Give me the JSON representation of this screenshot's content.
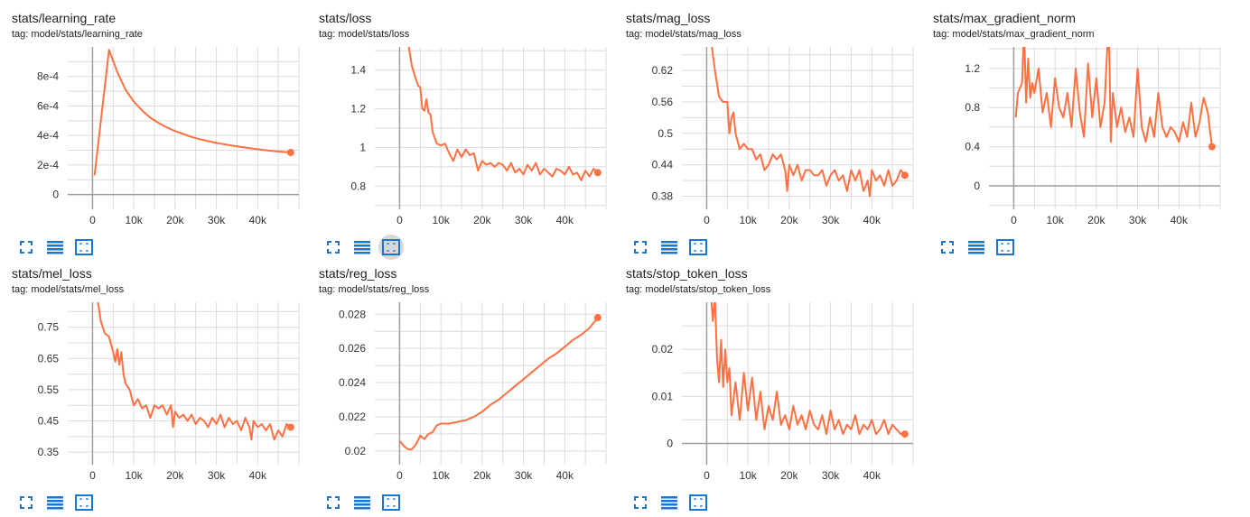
{
  "colors": {
    "line": "#ff7043",
    "grid": "#dcdcdc",
    "axis": "#9e9e9e",
    "icon": "#1976d2"
  },
  "icons": [
    "fit-to-screen-icon",
    "data-table-icon",
    "zoom-box-icon"
  ],
  "chart_data": [
    {
      "type": "line",
      "title": "stats/learning_rate",
      "tag": "tag: model/stats/learning_rate",
      "xlim": [
        -6000,
        50000
      ],
      "ylim": [
        -0.0001,
        0.001
      ],
      "xticks": [
        0,
        10000,
        20000,
        30000,
        40000
      ],
      "xtick_labels": [
        "0",
        "10k",
        "20k",
        "30k",
        "40k"
      ],
      "yticks": [
        0,
        0.0002,
        0.0004,
        0.0006,
        0.0008
      ],
      "ytick_labels": [
        "0",
        "2e-4",
        "4e-4",
        "6e-4",
        "8e-4"
      ],
      "x": [
        500,
        4000,
        6000,
        8000,
        10000,
        12000,
        14000,
        16000,
        18000,
        20000,
        22000,
        24000,
        26000,
        28000,
        30000,
        32000,
        34000,
        36000,
        38000,
        40000,
        42000,
        44000,
        46000,
        48000
      ],
      "y": [
        0.00013,
        0.00098,
        0.00083,
        0.00071,
        0.00063,
        0.00057,
        0.00052,
        0.000485,
        0.000455,
        0.00043,
        0.00041,
        0.00039,
        0.000375,
        0.000362,
        0.00035,
        0.00034,
        0.000331,
        0.000322,
        0.000314,
        0.000307,
        0.0003,
        0.000294,
        0.000289,
        0.000285
      ]
    },
    {
      "type": "line",
      "title": "stats/loss",
      "tag": "tag: model/stats/loss",
      "xlim": [
        -6000,
        50000
      ],
      "ylim": [
        0.68,
        1.52
      ],
      "xticks": [
        0,
        10000,
        20000,
        30000,
        40000
      ],
      "xtick_labels": [
        "0",
        "10k",
        "20k",
        "30k",
        "40k"
      ],
      "yticks": [
        0.8,
        1.0,
        1.2,
        1.4
      ],
      "ytick_labels": [
        "0.8",
        "1",
        "1.2",
        "1.4"
      ],
      "x": [
        2000,
        3000,
        4000,
        4500,
        5000,
        5500,
        6000,
        6500,
        7000,
        7500,
        8000,
        9000,
        10000,
        11000,
        12000,
        13000,
        14000,
        15000,
        16000,
        17000,
        18000,
        19000,
        20000,
        21000,
        22000,
        23000,
        24000,
        25000,
        26000,
        27000,
        28000,
        29000,
        30000,
        31000,
        32000,
        33000,
        34000,
        35000,
        36000,
        37000,
        38000,
        39000,
        40000,
        41000,
        42000,
        43000,
        44000,
        45000,
        46000,
        47000,
        48000
      ],
      "y": [
        1.55,
        1.42,
        1.35,
        1.32,
        1.31,
        1.2,
        1.19,
        1.25,
        1.18,
        1.17,
        1.08,
        1.02,
        1.01,
        1.02,
        0.97,
        0.93,
        0.99,
        0.95,
        0.99,
        0.96,
        0.97,
        0.88,
        0.93,
        0.91,
        0.92,
        0.9,
        0.92,
        0.91,
        0.88,
        0.92,
        0.87,
        0.89,
        0.86,
        0.91,
        0.88,
        0.92,
        0.86,
        0.89,
        0.87,
        0.85,
        0.89,
        0.88,
        0.86,
        0.9,
        0.86,
        0.87,
        0.83,
        0.88,
        0.85,
        0.89,
        0.87
      ]
    },
    {
      "type": "line",
      "title": "stats/mag_loss",
      "tag": "tag: model/stats/mag_loss",
      "xlim": [
        -6000,
        50000
      ],
      "ylim": [
        0.355,
        0.665
      ],
      "xticks": [
        0,
        10000,
        20000,
        30000,
        40000
      ],
      "xtick_labels": [
        "0",
        "10k",
        "20k",
        "30k",
        "40k"
      ],
      "yticks": [
        0.38,
        0.44,
        0.5,
        0.56,
        0.62
      ],
      "ytick_labels": [
        "0.38",
        "0.44",
        "0.5",
        "0.56",
        "0.62"
      ],
      "x": [
        1000,
        2000,
        3000,
        4000,
        5000,
        5500,
        6000,
        6500,
        7000,
        8000,
        9000,
        10000,
        11000,
        12000,
        13000,
        14000,
        15000,
        16000,
        17000,
        18000,
        19000,
        19500,
        20000,
        21000,
        22000,
        23000,
        24000,
        25000,
        26000,
        27000,
        28000,
        29000,
        30000,
        31000,
        32000,
        33000,
        34000,
        35000,
        36000,
        37000,
        38000,
        39000,
        39500,
        40000,
        41000,
        42000,
        43000,
        44000,
        45000,
        46000,
        47000,
        48000
      ],
      "y": [
        0.68,
        0.62,
        0.57,
        0.56,
        0.56,
        0.5,
        0.53,
        0.54,
        0.5,
        0.47,
        0.48,
        0.47,
        0.47,
        0.45,
        0.46,
        0.43,
        0.44,
        0.46,
        0.45,
        0.46,
        0.43,
        0.39,
        0.44,
        0.42,
        0.44,
        0.41,
        0.43,
        0.43,
        0.42,
        0.42,
        0.43,
        0.4,
        0.42,
        0.43,
        0.41,
        0.42,
        0.39,
        0.43,
        0.41,
        0.43,
        0.39,
        0.41,
        0.38,
        0.43,
        0.41,
        0.42,
        0.4,
        0.43,
        0.4,
        0.41,
        0.43,
        0.42
      ]
    },
    {
      "type": "line",
      "title": "stats/max_gradient_norm",
      "tag": "tag: model/stats/max_gradient_norm",
      "xlim": [
        -6000,
        50000
      ],
      "ylim": [
        -0.24,
        1.42
      ],
      "xticks": [
        0,
        10000,
        20000,
        30000,
        40000
      ],
      "xtick_labels": [
        "0",
        "10k",
        "20k",
        "30k",
        "40k"
      ],
      "yticks": [
        0,
        0.4,
        0.8,
        1.2
      ],
      "ytick_labels": [
        "0",
        "0.4",
        "0.8",
        "1.2"
      ],
      "x": [
        500,
        1000,
        2000,
        2500,
        3000,
        3500,
        4000,
        4500,
        5000,
        6000,
        7000,
        8000,
        9000,
        10000,
        11000,
        12000,
        13000,
        14000,
        15000,
        16000,
        17000,
        18000,
        19000,
        20000,
        21000,
        22000,
        23000,
        23500,
        24000,
        25000,
        26000,
        27000,
        28000,
        29000,
        30000,
        31000,
        32000,
        33000,
        34000,
        35000,
        36000,
        37000,
        38000,
        39000,
        40000,
        41000,
        42000,
        43000,
        44000,
        45000,
        46000,
        47000,
        48000
      ],
      "y": [
        0.7,
        0.95,
        1.05,
        1.6,
        0.85,
        1.3,
        0.9,
        1.05,
        0.95,
        1.2,
        0.75,
        0.95,
        0.6,
        1.1,
        0.8,
        0.7,
        0.95,
        0.6,
        1.2,
        0.75,
        0.5,
        1.25,
        0.7,
        1.1,
        0.6,
        0.85,
        1.7,
        0.45,
        0.95,
        0.6,
        0.8,
        0.55,
        0.7,
        0.5,
        1.2,
        0.6,
        0.45,
        0.7,
        0.5,
        0.95,
        0.6,
        0.5,
        0.6,
        0.55,
        0.45,
        0.65,
        0.5,
        0.85,
        0.5,
        0.65,
        0.9,
        0.75,
        0.4
      ]
    },
    {
      "type": "line",
      "title": "stats/mel_loss",
      "tag": "tag: model/stats/mel_loss",
      "xlim": [
        -6000,
        50000
      ],
      "ylim": [
        0.31,
        0.83
      ],
      "xticks": [
        0,
        10000,
        20000,
        30000,
        40000
      ],
      "xtick_labels": [
        "0",
        "10k",
        "20k",
        "30k",
        "40k"
      ],
      "yticks": [
        0.35,
        0.45,
        0.55,
        0.65,
        0.75
      ],
      "ytick_labels": [
        "0.35",
        "0.45",
        "0.55",
        "0.65",
        "0.75"
      ],
      "x": [
        1000,
        2000,
        3000,
        4000,
        5000,
        5500,
        6000,
        6500,
        7000,
        7500,
        8000,
        9000,
        10000,
        11000,
        12000,
        13000,
        14000,
        15000,
        16000,
        17000,
        18000,
        19000,
        19500,
        20000,
        21000,
        22000,
        23000,
        24000,
        25000,
        26000,
        27000,
        28000,
        29000,
        30000,
        31000,
        32000,
        33000,
        34000,
        35000,
        36000,
        37000,
        38000,
        38500,
        39000,
        40000,
        41000,
        42000,
        43000,
        44000,
        45000,
        46000,
        47000,
        48000
      ],
      "y": [
        0.86,
        0.77,
        0.73,
        0.72,
        0.67,
        0.64,
        0.68,
        0.63,
        0.67,
        0.6,
        0.57,
        0.55,
        0.5,
        0.52,
        0.49,
        0.5,
        0.46,
        0.5,
        0.49,
        0.5,
        0.47,
        0.5,
        0.43,
        0.48,
        0.46,
        0.47,
        0.45,
        0.47,
        0.44,
        0.46,
        0.45,
        0.43,
        0.46,
        0.44,
        0.47,
        0.43,
        0.46,
        0.44,
        0.45,
        0.42,
        0.46,
        0.43,
        0.39,
        0.45,
        0.43,
        0.44,
        0.42,
        0.44,
        0.39,
        0.42,
        0.4,
        0.44,
        0.43
      ]
    },
    {
      "type": "line",
      "title": "stats/reg_loss",
      "tag": "tag: model/stats/reg_loss",
      "xlim": [
        -6000,
        50000
      ],
      "ylim": [
        0.0192,
        0.0287
      ],
      "xticks": [
        0,
        10000,
        20000,
        30000,
        40000
      ],
      "xtick_labels": [
        "0",
        "10k",
        "20k",
        "30k",
        "40k"
      ],
      "yticks": [
        0.02,
        0.022,
        0.024,
        0.026,
        0.028
      ],
      "ytick_labels": [
        "0.02",
        "0.022",
        "0.024",
        "0.026",
        "0.028"
      ],
      "x": [
        0,
        1000,
        2000,
        3000,
        4000,
        5000,
        6000,
        7000,
        8000,
        9000,
        10000,
        12000,
        14000,
        16000,
        18000,
        20000,
        22000,
        24000,
        26000,
        28000,
        30000,
        32000,
        34000,
        36000,
        38000,
        40000,
        42000,
        44000,
        46000,
        48000
      ],
      "y": [
        0.0206,
        0.0203,
        0.0201,
        0.0201,
        0.0204,
        0.0209,
        0.0207,
        0.021,
        0.0211,
        0.0215,
        0.0216,
        0.0216,
        0.0217,
        0.0218,
        0.022,
        0.0223,
        0.0227,
        0.023,
        0.0234,
        0.0238,
        0.0242,
        0.0246,
        0.025,
        0.0254,
        0.0257,
        0.0261,
        0.0265,
        0.0268,
        0.0272,
        0.0278
      ]
    },
    {
      "type": "line",
      "title": "stats/stop_token_loss",
      "tag": "tag: model/stats/stop_token_loss",
      "xlim": [
        -6000,
        50000
      ],
      "ylim": [
        -0.0045,
        0.03
      ],
      "xticks": [
        0,
        10000,
        20000,
        30000,
        40000
      ],
      "xtick_labels": [
        "0",
        "10k",
        "20k",
        "30k",
        "40k"
      ],
      "yticks": [
        0,
        0.01,
        0.02
      ],
      "ytick_labels": [
        "0",
        "0.01",
        "0.02"
      ],
      "x": [
        1000,
        1500,
        2000,
        2500,
        3000,
        3500,
        4000,
        4500,
        5000,
        5500,
        6000,
        7000,
        8000,
        9000,
        10000,
        11000,
        12000,
        13000,
        14000,
        15000,
        16000,
        17000,
        18000,
        19000,
        20000,
        21000,
        22000,
        23000,
        24000,
        25000,
        26000,
        27000,
        28000,
        29000,
        30000,
        31000,
        32000,
        33000,
        34000,
        35000,
        36000,
        37000,
        38000,
        39000,
        40000,
        41000,
        42000,
        43000,
        44000,
        45000,
        46000,
        47000,
        48000
      ],
      "y": [
        0.032,
        0.026,
        0.031,
        0.018,
        0.013,
        0.022,
        0.012,
        0.02,
        0.013,
        0.016,
        0.006,
        0.013,
        0.005,
        0.015,
        0.007,
        0.014,
        0.005,
        0.011,
        0.003,
        0.008,
        0.005,
        0.011,
        0.004,
        0.006,
        0.003,
        0.008,
        0.004,
        0.006,
        0.003,
        0.007,
        0.004,
        0.003,
        0.006,
        0.002,
        0.007,
        0.003,
        0.005,
        0.002,
        0.004,
        0.003,
        0.006,
        0.002,
        0.004,
        0.003,
        0.005,
        0.002,
        0.003,
        0.005,
        0.002,
        0.004,
        0.003,
        0.002,
        0.002
      ]
    }
  ]
}
